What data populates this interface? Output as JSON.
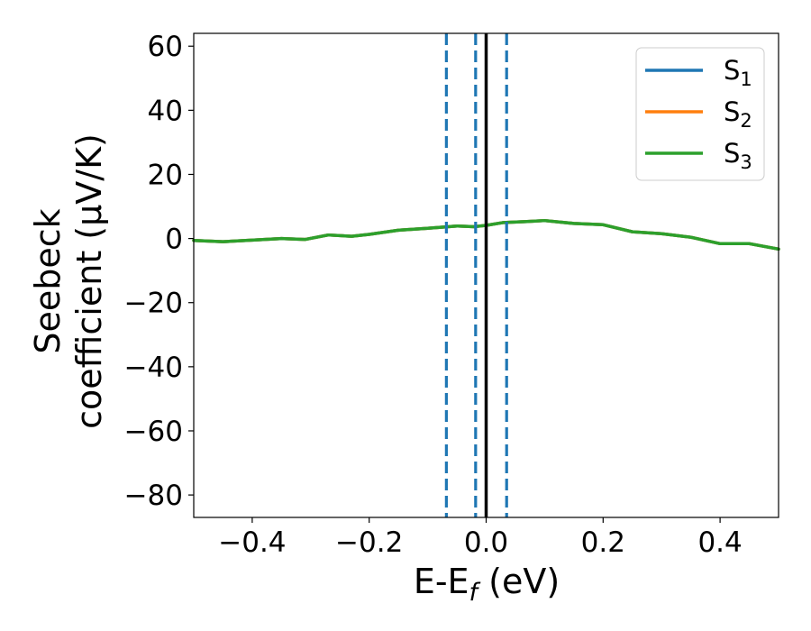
{
  "chart_data": {
    "type": "line",
    "xlabel": {
      "main": "E-E",
      "sub": "f",
      "unit": " (eV)"
    },
    "ylabel": {
      "line1": "Seebeck",
      "line2": "coefficient  (μV/K)"
    },
    "xlim": [
      -0.5,
      0.5
    ],
    "ylim": [
      -87,
      64
    ],
    "xticks": [
      -0.4,
      -0.2,
      0.0,
      0.2,
      0.4
    ],
    "xtick_labels": [
      "−0.4",
      "−0.2",
      "0.0",
      "0.2",
      "0.4"
    ],
    "yticks": [
      60,
      40,
      20,
      0,
      -20,
      -40,
      -60,
      -80
    ],
    "ytick_labels": [
      "60",
      "40",
      "20",
      "0",
      "−20",
      "−40",
      "−60",
      "−80"
    ],
    "grid": false,
    "legend_position": "top-right",
    "series": [
      {
        "name": "S",
        "sub": "1",
        "color": "#1f77b4",
        "x": [
          -0.5,
          -0.45,
          -0.4,
          -0.35,
          -0.31,
          -0.27,
          -0.23,
          -0.2,
          -0.15,
          -0.1,
          -0.05,
          -0.02,
          0.0,
          0.03,
          0.07,
          0.1,
          0.15,
          0.2,
          0.25,
          0.3,
          0.35,
          0.4,
          0.45,
          0.5
        ],
        "y": [
          -0.6,
          -1.0,
          -0.5,
          0.0,
          -0.3,
          1.1,
          0.7,
          1.3,
          2.6,
          3.2,
          3.9,
          3.7,
          4.1,
          5.0,
          5.3,
          5.6,
          4.7,
          4.3,
          2.1,
          1.5,
          0.4,
          -1.6,
          -1.6,
          -3.3
        ]
      },
      {
        "name": "S",
        "sub": "2",
        "color": "#ff7f0e",
        "x": [
          -0.5,
          -0.45,
          -0.4,
          -0.35,
          -0.31,
          -0.27,
          -0.23,
          -0.2,
          -0.15,
          -0.1,
          -0.05,
          -0.02,
          0.0,
          0.03,
          0.07,
          0.1,
          0.15,
          0.2,
          0.25,
          0.3,
          0.35,
          0.4,
          0.45,
          0.5
        ],
        "y": [
          -0.6,
          -1.0,
          -0.5,
          0.0,
          -0.3,
          1.1,
          0.7,
          1.3,
          2.6,
          3.2,
          3.9,
          3.7,
          4.1,
          5.0,
          5.3,
          5.6,
          4.7,
          4.3,
          2.1,
          1.5,
          0.4,
          -1.6,
          -1.6,
          -3.3
        ]
      },
      {
        "name": "S",
        "sub": "3",
        "color": "#2ca02c",
        "x": [
          -0.5,
          -0.45,
          -0.4,
          -0.35,
          -0.31,
          -0.27,
          -0.23,
          -0.2,
          -0.15,
          -0.1,
          -0.05,
          -0.02,
          0.0,
          0.03,
          0.07,
          0.1,
          0.15,
          0.2,
          0.25,
          0.3,
          0.35,
          0.4,
          0.45,
          0.5
        ],
        "y": [
          -0.6,
          -1.0,
          -0.5,
          0.0,
          -0.3,
          1.1,
          0.7,
          1.3,
          2.6,
          3.2,
          3.9,
          3.7,
          4.1,
          5.0,
          5.3,
          5.6,
          4.7,
          4.3,
          2.1,
          1.5,
          0.4,
          -1.6,
          -1.6,
          -3.3
        ]
      }
    ],
    "vlines": [
      {
        "x": -0.068,
        "style": "dashed",
        "color": "#1f77b4"
      },
      {
        "x": -0.018,
        "style": "dashed",
        "color": "#1f77b4"
      },
      {
        "x": 0.0,
        "style": "solid",
        "color": "#000000"
      },
      {
        "x": 0.035,
        "style": "dashed",
        "color": "#1f77b4"
      }
    ]
  }
}
